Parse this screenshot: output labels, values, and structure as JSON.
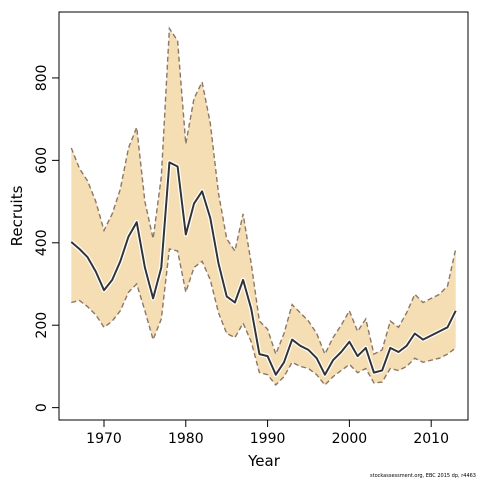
{
  "chart_data": {
    "type": "line",
    "title": "",
    "xlabel": "Year",
    "ylabel": "Recruits",
    "xlim": [
      1964.5,
      2014.5
    ],
    "ylim": [
      -30,
      960
    ],
    "xticks": [
      1970,
      1980,
      1990,
      2000,
      2010
    ],
    "yticks": [
      0,
      200,
      400,
      600,
      800
    ],
    "grid": false,
    "legend": "none",
    "colors": {
      "band": "#F5DEB3",
      "band_edge": "#8B7765",
      "line": "#333333",
      "line_halo": "#ffffff"
    },
    "x": [
      1966,
      1967,
      1968,
      1969,
      1970,
      1971,
      1972,
      1973,
      1974,
      1975,
      1976,
      1977,
      1978,
      1979,
      1980,
      1981,
      1982,
      1983,
      1984,
      1985,
      1986,
      1987,
      1988,
      1989,
      1990,
      1991,
      1992,
      1993,
      1994,
      1995,
      1996,
      1997,
      1998,
      1999,
      2000,
      2001,
      2002,
      2003,
      2004,
      2005,
      2006,
      2007,
      2008,
      2009,
      2010,
      2011,
      2012,
      2013
    ],
    "series": [
      {
        "role": "estimate",
        "values": [
          402,
          385,
          365,
          330,
          285,
          310,
          355,
          415,
          450,
          340,
          265,
          340,
          595,
          585,
          420,
          495,
          525,
          460,
          350,
          270,
          255,
          310,
          240,
          130,
          125,
          80,
          110,
          165,
          150,
          140,
          120,
          80,
          115,
          135,
          160,
          125,
          145,
          85,
          90,
          145,
          135,
          150,
          180,
          165,
          175,
          185,
          195,
          235
        ]
      },
      {
        "role": "upper",
        "values": [
          630,
          580,
          550,
          500,
          430,
          470,
          530,
          630,
          680,
          500,
          410,
          560,
          920,
          890,
          640,
          750,
          790,
          690,
          520,
          410,
          380,
          470,
          350,
          210,
          190,
          130,
          180,
          250,
          230,
          210,
          180,
          130,
          170,
          200,
          235,
          185,
          215,
          130,
          140,
          210,
          195,
          230,
          275,
          255,
          265,
          275,
          295,
          385
        ]
      },
      {
        "role": "lower",
        "values": [
          255,
          260,
          245,
          225,
          195,
          210,
          235,
          280,
          300,
          235,
          165,
          215,
          385,
          380,
          280,
          340,
          355,
          310,
          230,
          180,
          170,
          205,
          160,
          85,
          80,
          55,
          75,
          110,
          100,
          95,
          80,
          55,
          75,
          90,
          105,
          85,
          95,
          60,
          62,
          95,
          90,
          100,
          120,
          110,
          115,
          120,
          130,
          145
        ]
      }
    ]
  },
  "credit": "stockassessment.org, EBC 2015 dp, r4463"
}
